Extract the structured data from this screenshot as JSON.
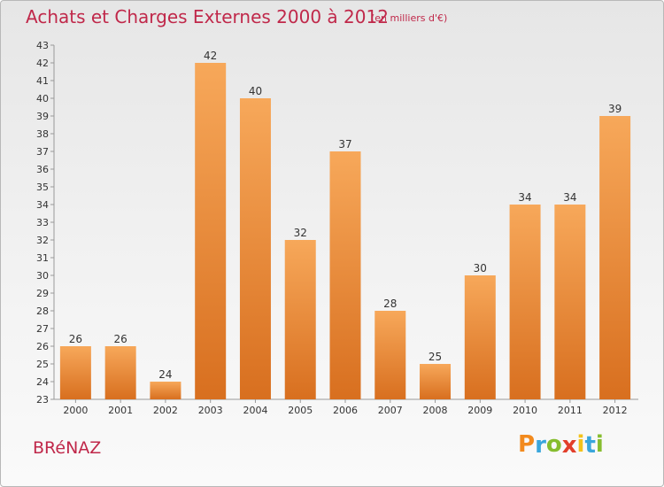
{
  "header": {
    "title": "Achats et Charges Externes 2000 à 2012",
    "unit": "(en milliers d'€)"
  },
  "footer": {
    "place": "BRéNAZ",
    "logo_letters": [
      "P",
      "r",
      "o",
      "x",
      "i",
      "t",
      "i"
    ]
  },
  "colors": {
    "title": "#c0284a",
    "bar_top": "#f7a85a",
    "bar_bottom": "#d86f1f",
    "logo": [
      "#f28a1e",
      "#3aa6dc",
      "#86bd2f",
      "#e23f2b",
      "#f3c21b",
      "#3aa6dc",
      "#86bd2f"
    ]
  },
  "chart_data": {
    "type": "bar",
    "title": "Achats et Charges Externes 2000 à 2012",
    "subtitle": "(en milliers d'€)",
    "xlabel": "",
    "ylabel": "",
    "categories": [
      "2000",
      "2001",
      "2002",
      "2003",
      "2004",
      "2005",
      "2006",
      "2007",
      "2008",
      "2009",
      "2010",
      "2011",
      "2012"
    ],
    "values": [
      26,
      26,
      24,
      42,
      40,
      32,
      37,
      28,
      25,
      30,
      34,
      34,
      39
    ],
    "ylim": [
      23,
      43
    ],
    "yticks": [
      23,
      24,
      25,
      26,
      27,
      28,
      29,
      30,
      31,
      32,
      33,
      34,
      35,
      36,
      37,
      38,
      39,
      40,
      41,
      42,
      43
    ],
    "grid": "none",
    "legend": "none"
  }
}
